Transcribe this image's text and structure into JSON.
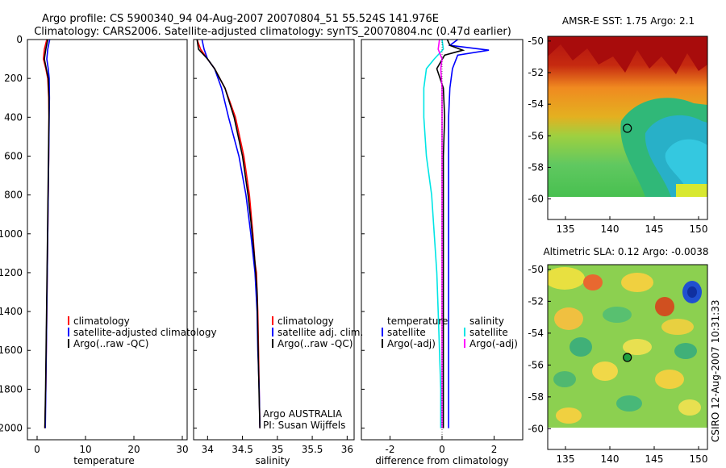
{
  "header": {
    "line1": "Argo profile: CS 5900340_94 04-Aug-2007 20070804_51 55.524S 141.976E",
    "line2": "Climatology: CARS2006. Satellite-adjusted climatology: synTS_20070804.nc (0.47d earlier)"
  },
  "footer_stamp": "CSIRO 12-Aug-2007 10:31:33",
  "chart_data": [
    {
      "id": "temperature",
      "type": "line",
      "xlabel": "temperature",
      "ylabel": "",
      "xlim": [
        -2,
        31
      ],
      "ylim": [
        2060,
        0
      ],
      "y_reversed": true,
      "xticks": [
        0,
        10,
        20,
        30
      ],
      "xtick_labels": [
        "0",
        "10",
        "20",
        "30"
      ],
      "yticks": [
        0,
        200,
        400,
        600,
        800,
        1000,
        1200,
        1400,
        1600,
        1800,
        2000
      ],
      "ytick_labels": [
        "0",
        "200",
        "400",
        "600",
        "800",
        "1000",
        "1200",
        "1400",
        "1600",
        "1800",
        "2000"
      ],
      "legend": [
        "climatology",
        "satellite-adjusted climatology",
        "Argo(..raw -QC)"
      ],
      "legend_colors": [
        "#ff0000",
        "#0000ff",
        "#000000"
      ],
      "legend_position": "center-right",
      "series": [
        {
          "name": "climatology",
          "color": "#ff0000",
          "x": [
            2.0,
            1.5,
            1.3,
            1.8,
            2.2,
            2.4,
            2.45,
            2.4,
            2.3,
            2.2,
            2.1,
            2.0,
            1.9,
            1.8,
            1.7,
            1.6
          ],
          "y": [
            0,
            50,
            100,
            150,
            200,
            300,
            400,
            600,
            800,
            1000,
            1200,
            1400,
            1600,
            1800,
            1900,
            2000
          ]
        },
        {
          "name": "satellite-adjusted climatology",
          "color": "#0000ff",
          "x": [
            2.6,
            2.2,
            2.0,
            2.3,
            2.5,
            2.55,
            2.5,
            2.4,
            2.3,
            2.2,
            2.1,
            2.0,
            1.9,
            1.8,
            1.7
          ],
          "y": [
            0,
            50,
            100,
            150,
            200,
            300,
            400,
            600,
            800,
            1000,
            1200,
            1400,
            1600,
            1800,
            2000
          ]
        },
        {
          "name": "Argo(..raw -QC)",
          "color": "#000000",
          "x": [
            2.2,
            1.8,
            1.5,
            1.9,
            2.3,
            2.45,
            2.45,
            2.35,
            2.25,
            2.15,
            2.05,
            1.95,
            1.85,
            1.75,
            1.6
          ],
          "y": [
            0,
            50,
            100,
            150,
            200,
            300,
            400,
            600,
            800,
            1000,
            1200,
            1400,
            1600,
            1800,
            2000
          ]
        }
      ]
    },
    {
      "id": "salinity",
      "type": "line",
      "xlabel": "salinity",
      "ylabel": "",
      "xlim": [
        33.8,
        36.1
      ],
      "ylim": [
        2060,
        0
      ],
      "y_reversed": true,
      "xticks": [
        34,
        34.5,
        35,
        35.5,
        36
      ],
      "xtick_labels": [
        "34",
        "34.5",
        "35",
        "35.5",
        "36"
      ],
      "legend": [
        "climatology",
        "satellite adj. clim.",
        "Argo(..raw -QC)"
      ],
      "legend_colors": [
        "#ff0000",
        "#0000ff",
        "#000000"
      ],
      "legend_position": "center-right",
      "annotation": [
        "Argo AUSTRALIA",
        "PI: Susan Wijffels"
      ],
      "series": [
        {
          "name": "climatology",
          "color": "#ff0000",
          "x": [
            33.85,
            33.9,
            34.0,
            34.1,
            34.25,
            34.4,
            34.52,
            34.6,
            34.65,
            34.68,
            34.7,
            34.72,
            34.73,
            34.74,
            34.75
          ],
          "y": [
            0,
            50,
            100,
            150,
            250,
            400,
            600,
            800,
            1000,
            1150,
            1200,
            1400,
            1600,
            1800,
            2000
          ]
        },
        {
          "name": "satellite adj. clim.",
          "color": "#0000ff",
          "x": [
            33.92,
            33.95,
            34.0,
            34.1,
            34.2,
            34.3,
            34.45,
            34.55,
            34.62,
            34.68,
            34.71,
            34.72,
            34.73,
            34.74,
            34.75
          ],
          "y": [
            0,
            50,
            100,
            150,
            250,
            400,
            600,
            800,
            1000,
            1200,
            1400,
            1600,
            1700,
            1800,
            2000
          ]
        },
        {
          "name": "Argo(..raw -QC)",
          "color": "#000000",
          "x": [
            33.85,
            33.87,
            34.0,
            34.1,
            34.25,
            34.38,
            34.5,
            34.58,
            34.64,
            34.68,
            34.71,
            34.72,
            34.73,
            34.74,
            34.75
          ],
          "y": [
            0,
            50,
            100,
            150,
            250,
            400,
            600,
            800,
            1000,
            1150,
            1300,
            1500,
            1700,
            1850,
            2000
          ]
        }
      ]
    },
    {
      "id": "difference",
      "type": "line",
      "xlabel": "difference from climatology",
      "ylabel": "",
      "xlim": [
        -3.1,
        3.1
      ],
      "ylim": [
        2060,
        0
      ],
      "y_reversed": true,
      "xticks": [
        -2,
        0,
        2
      ],
      "xtick_labels": [
        "-2",
        "0",
        "2"
      ],
      "legend_groups": [
        {
          "title": "temperature",
          "items": [
            "satellite",
            "Argo(-adj)"
          ],
          "colors": [
            "#0000ff",
            "#000000"
          ]
        },
        {
          "title": "salinity",
          "items": [
            "satellite",
            "Argo(-adj)"
          ],
          "colors": [
            "#00e5e5",
            "#ff00ff"
          ]
        }
      ],
      "legend_position": "center",
      "series": [
        {
          "name": "temperature satellite",
          "color": "#0000ff",
          "x": [
            0.6,
            0.3,
            1.8,
            0.6,
            0.4,
            0.3,
            0.25,
            0.25,
            0.25,
            0.25,
            0.25,
            0.25,
            0.25,
            0.25
          ],
          "y": [
            0,
            30,
            55,
            80,
            150,
            250,
            400,
            600,
            800,
            1000,
            1200,
            1500,
            1800,
            2000
          ]
        },
        {
          "name": "temperature Argo(-adj)",
          "color": "#000000",
          "x": [
            0.2,
            0.3,
            0.8,
            0.1,
            -0.2,
            0.05,
            0.1,
            0.05,
            0.05,
            0.05,
            0.05,
            0.05,
            0.05,
            0.05
          ],
          "y": [
            0,
            30,
            55,
            80,
            150,
            250,
            400,
            600,
            800,
            1000,
            1200,
            1500,
            1800,
            2000
          ]
        },
        {
          "name": "salinity satellite",
          "color": "#00e5e5",
          "x": [
            0.0,
            0.05,
            -0.3,
            -0.6,
            -0.7,
            -0.7,
            -0.6,
            -0.4,
            -0.3,
            -0.2,
            -0.15,
            -0.1,
            -0.05,
            -0.05
          ],
          "y": [
            0,
            50,
            100,
            150,
            250,
            400,
            600,
            800,
            1000,
            1200,
            1400,
            1600,
            1800,
            2000
          ]
        },
        {
          "name": "salinity Argo(-adj)",
          "color": "#ff00ff",
          "x": [
            -0.1,
            -0.15,
            0.0,
            -0.05,
            0.0,
            0.0,
            0.0,
            0.0,
            0.0,
            0.0,
            0.0,
            0.0,
            0.0,
            0.0
          ],
          "y": [
            0,
            50,
            100,
            150,
            250,
            400,
            600,
            800,
            1000,
            1200,
            1400,
            1600,
            1800,
            2000
          ]
        }
      ]
    },
    {
      "id": "amsre-sst",
      "type": "heatmap",
      "title": "AMSR-E SST: 1.75 Argo: 2.1",
      "xlim": [
        133,
        151
      ],
      "ylim": [
        -61.3,
        -49.7
      ],
      "xticks": [
        135,
        140,
        145,
        150
      ],
      "xtick_labels": [
        "135",
        "140",
        "145",
        "150"
      ],
      "yticks": [
        -50,
        -52,
        -54,
        -56,
        -58,
        -60
      ],
      "ytick_labels": [
        "-50",
        "-52",
        "-54",
        "-56",
        "-58",
        "-60"
      ],
      "data_extent": {
        "x": [
          133,
          151
        ],
        "y": [
          -60,
          -49.7
        ]
      },
      "marker": {
        "lon": 141.976,
        "lat": -55.524
      }
    },
    {
      "id": "altimetric-sla",
      "type": "heatmap",
      "title": "Altimetric SLA: 0.12 Argo: -0.0038",
      "xlim": [
        133,
        151
      ],
      "ylim": [
        -61.3,
        -49.7
      ],
      "xticks": [
        135,
        140,
        145,
        150
      ],
      "xtick_labels": [
        "135",
        "140",
        "145",
        "150"
      ],
      "yticks": [
        -50,
        -52,
        -54,
        -56,
        -58,
        -60
      ],
      "ytick_labels": [
        "-50",
        "-52",
        "-54",
        "-56",
        "-58",
        "-60"
      ],
      "data_extent": {
        "x": [
          133,
          151
        ],
        "y": [
          -60.2,
          -49.7
        ]
      },
      "marker": {
        "lon": 141.976,
        "lat": -55.524
      }
    }
  ]
}
